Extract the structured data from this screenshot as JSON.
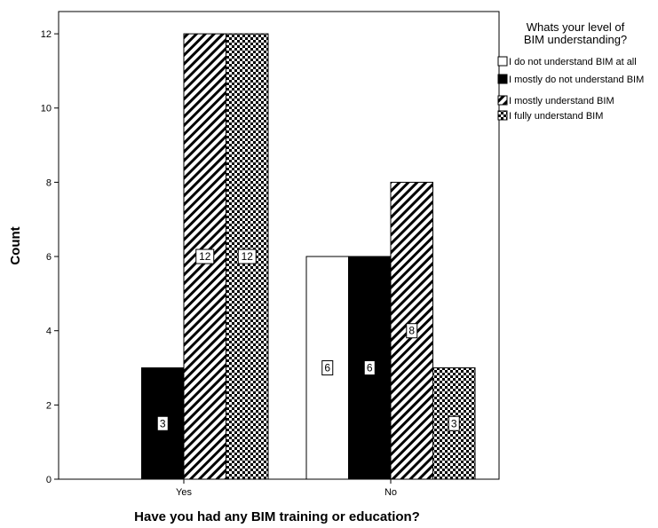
{
  "chart_data": {
    "type": "bar",
    "title": "",
    "xlabel": "Have you had any BIM training or education?",
    "ylabel": "Count",
    "categories": [
      "Yes",
      "No"
    ],
    "ylim": [
      0,
      12.6
    ],
    "yticks": [
      0,
      2,
      4,
      6,
      8,
      10,
      12
    ],
    "grid": false,
    "legend": {
      "title": "Whats your level of BIM understanding?",
      "placement": "right"
    },
    "series": [
      {
        "name": "I do not understand BIM at all",
        "values": [
          0,
          6
        ],
        "pattern": "white"
      },
      {
        "name": "I mostly do not understand BIM",
        "values": [
          3,
          6
        ],
        "pattern": "black"
      },
      {
        "name": "I mostly understand BIM",
        "values": [
          12,
          8
        ],
        "pattern": "diagonal"
      },
      {
        "name": "I fully understand BIM",
        "values": [
          12,
          3
        ],
        "pattern": "checker"
      }
    ]
  }
}
